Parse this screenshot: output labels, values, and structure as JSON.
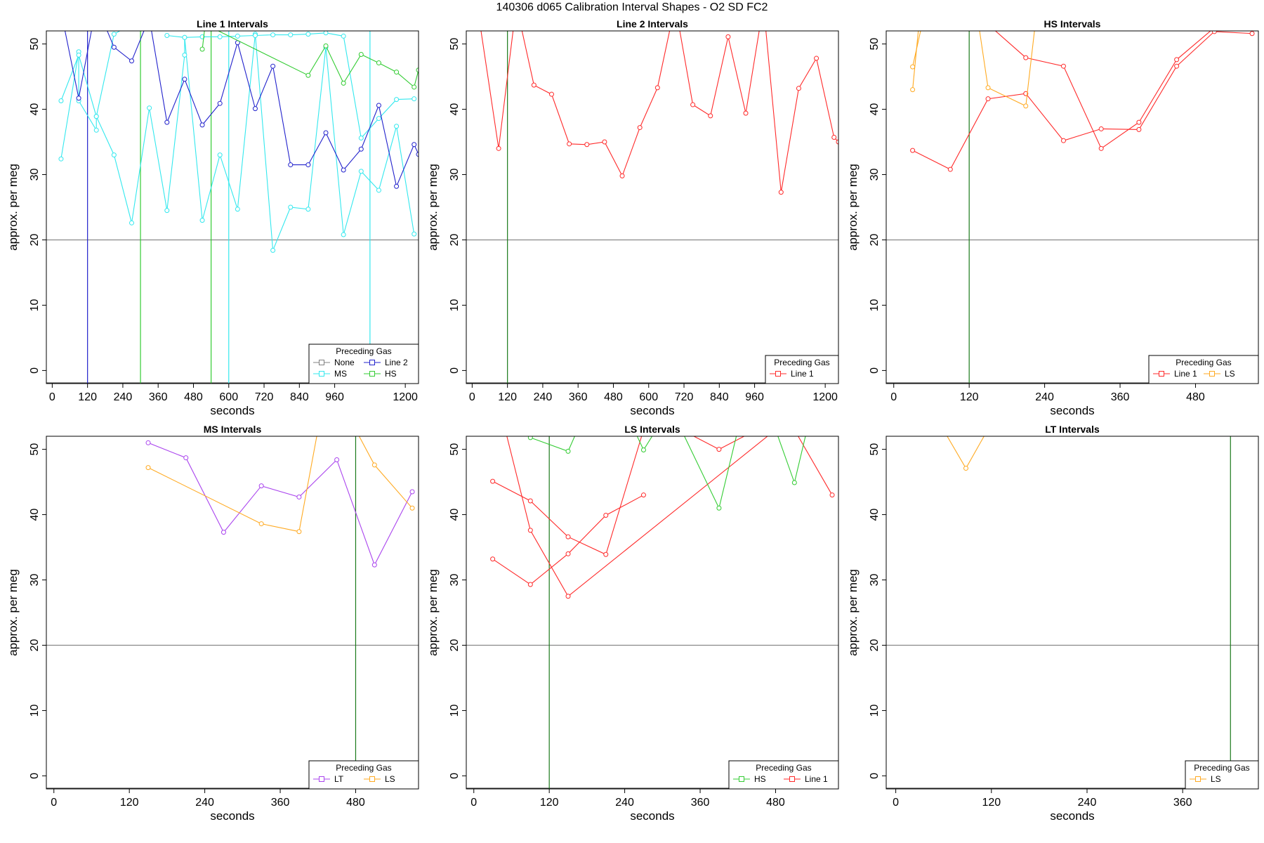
{
  "page_title": "140306   d065   Calibration Interval Shapes - O2 SD FC2",
  "axis_labels": {
    "x": "seconds",
    "y": "approx. per meg"
  },
  "legend_title": "Preceding Gas",
  "colors": {
    "None": "#808080",
    "Line 1": "#ff2a2a",
    "Line 2": "#2222cc",
    "MS": "#33e8ee",
    "HS": "#33cc33",
    "LS": "#ffaa22",
    "LT": "#aa44ee",
    "reference": "#888888",
    "vline_default": "#1a7a1a"
  },
  "chart_data": [
    {
      "type": "line",
      "title": "Line 1 Intervals",
      "xlabel": "seconds",
      "ylabel": "approx. per meg",
      "xlim": [
        -20,
        1245
      ],
      "ylim": [
        -2,
        52
      ],
      "xticks": [
        0,
        120,
        240,
        360,
        480,
        600,
        720,
        840,
        960,
        1200
      ],
      "yticks": [
        0,
        10,
        20,
        30,
        40,
        50
      ],
      "hline": 20,
      "vlines": [
        {
          "x": 120,
          "color": "#2222cc"
        },
        {
          "x": 300,
          "color": "#33cc33"
        },
        {
          "x": 540,
          "color": "#33cc33"
        },
        {
          "x": 600,
          "color": "#33e8ee"
        },
        {
          "x": 1080,
          "color": "#33e8ee"
        }
      ],
      "legend": {
        "title": "Preceding Gas",
        "entries": [
          "None",
          "Line 2",
          "MS",
          "HS"
        ],
        "columns": 2,
        "position": "bottom-right"
      },
      "series": [
        {
          "name": "MS",
          "x": [
            30,
            90,
            90,
            150,
            150,
            210,
            270,
            330,
            390,
            450,
            450,
            510,
            570,
            630,
            690,
            750,
            810,
            870,
            930,
            990,
            1050,
            1110,
            1170,
            1230
          ],
          "y": [
            32.4,
            48.8,
            41.3,
            36.8,
            38.9,
            33.0,
            22.6,
            40.2,
            24.5,
            48.3,
            51.0,
            23.0,
            33.0,
            24.7,
            51.5,
            18.4,
            25.0,
            24.7,
            49.5,
            20.8,
            30.5,
            27.6,
            37.4,
            20.9
          ]
        },
        {
          "name": "MS",
          "x": [
            30,
            90,
            150,
            210,
            270
          ],
          "y": [
            41.3,
            48.3,
            38.9,
            51.5,
            53
          ]
        },
        {
          "name": "MS",
          "x": [
            390,
            450,
            510,
            570,
            630,
            690,
            750,
            810,
            870,
            930,
            990,
            1050,
            1110,
            1170,
            1230
          ],
          "y": [
            51.3,
            51.0,
            51.1,
            51.1,
            51.2,
            51.3,
            51.4,
            51.4,
            51.5,
            51.7,
            51.2,
            35.6,
            38.6,
            41.5,
            41.6
          ]
        },
        {
          "name": "Line 2",
          "x": [
            30,
            90,
            150,
            210,
            270,
            330,
            390,
            450,
            510,
            570,
            630,
            690,
            750,
            810,
            870,
            930,
            990,
            1050,
            1110,
            1170,
            1230,
            1245
          ],
          "y": [
            55,
            41.7,
            56,
            49.5,
            47.4,
            54,
            38.0,
            44.6,
            37.6,
            40.9,
            50.2,
            40.1,
            46.6,
            31.5,
            31.5,
            36.4,
            30.7,
            33.9,
            40.6,
            28.2,
            34.6,
            33.1
          ]
        },
        {
          "name": "HS",
          "x": [
            510,
            520,
            870,
            930,
            990,
            1050,
            1110,
            1170,
            1230,
            1245
          ],
          "y": [
            49.2,
            53,
            45.2,
            49.7,
            44.0,
            48.4,
            47.1,
            45.7,
            43.4,
            46.0
          ]
        }
      ]
    },
    {
      "type": "line",
      "title": "Line 2 Intervals",
      "xlabel": "seconds",
      "ylabel": "approx. per meg",
      "xlim": [
        -20,
        1245
      ],
      "ylim": [
        -2,
        52
      ],
      "xticks": [
        0,
        120,
        240,
        360,
        480,
        600,
        720,
        840,
        960,
        1200
      ],
      "yticks": [
        0,
        10,
        20,
        30,
        40,
        50
      ],
      "hline": 20,
      "vlines": [
        {
          "x": 120,
          "color": "#1a7a1a"
        }
      ],
      "legend": {
        "title": "Preceding Gas",
        "entries": [
          "Line 1"
        ],
        "columns": 1,
        "position": "bottom-right"
      },
      "series": [
        {
          "name": "Line 1",
          "x": [
            20,
            90,
            150,
            210,
            270,
            330,
            390,
            450,
            510,
            570,
            630,
            690,
            750,
            810,
            870,
            930,
            990,
            1050,
            1110,
            1170,
            1230,
            1245
          ],
          "y": [
            55,
            34.0,
            56,
            43.7,
            42.3,
            34.7,
            34.6,
            35.0,
            29.8,
            37.2,
            43.3,
            56,
            40.7,
            39.0,
            51.1,
            39.4,
            56,
            27.3,
            43.2,
            47.8,
            35.7,
            35.0
          ]
        }
      ]
    },
    {
      "type": "line",
      "title": "HS Intervals",
      "xlabel": "seconds",
      "ylabel": "approx. per meg",
      "xlim": [
        -12,
        580
      ],
      "ylim": [
        -2,
        52
      ],
      "xticks": [
        0,
        120,
        240,
        360,
        480
      ],
      "yticks": [
        0,
        10,
        20,
        30,
        40,
        50
      ],
      "hline": 20,
      "vlines": [
        {
          "x": 120,
          "color": "#1a7a1a"
        }
      ],
      "legend": {
        "title": "Preceding Gas",
        "entries": [
          "Line 1",
          "LS"
        ],
        "columns": 2,
        "position": "bottom-right"
      },
      "series": [
        {
          "name": "Line 1",
          "x": [
            30,
            90,
            150,
            210,
            270,
            330,
            390,
            450,
            510,
            570
          ],
          "y": [
            33.7,
            30.8,
            41.6,
            42.4,
            35.2,
            37.0,
            36.9,
            46.6,
            51.9,
            51.6
          ]
        },
        {
          "name": "Line 1",
          "x": [
            150,
            210,
            270,
            330,
            390,
            450,
            510
          ],
          "y": [
            53,
            47.9,
            46.6,
            34.0,
            38.0,
            47.6,
            52.5
          ]
        },
        {
          "name": "LS",
          "x": [
            30,
            45
          ],
          "y": [
            46.5,
            53
          ]
        },
        {
          "name": "LS",
          "x": [
            30,
            40
          ],
          "y": [
            43.0,
            53
          ]
        },
        {
          "name": "LS",
          "x": [
            135,
            150,
            210,
            225
          ],
          "y": [
            53,
            43.3,
            40.5,
            53
          ]
        }
      ]
    },
    {
      "type": "line",
      "title": "MS Intervals",
      "xlabel": "seconds",
      "ylabel": "approx. per meg",
      "xlim": [
        -12,
        580
      ],
      "ylim": [
        -2,
        52
      ],
      "xticks": [
        0,
        120,
        240,
        360,
        480
      ],
      "yticks": [
        0,
        10,
        20,
        30,
        40,
        50
      ],
      "hline": 20,
      "vlines": [
        {
          "x": 480,
          "color": "#1a7a1a"
        }
      ],
      "legend": {
        "title": "Preceding Gas",
        "entries": [
          "LT",
          "LS"
        ],
        "columns": 2,
        "position": "bottom-right"
      },
      "series": [
        {
          "name": "LT",
          "x": [
            150,
            210,
            270,
            330,
            390,
            450,
            510,
            570
          ],
          "y": [
            51.0,
            48.7,
            37.3,
            44.4,
            42.7,
            48.4,
            32.3,
            43.5
          ]
        },
        {
          "name": "LS",
          "x": [
            150,
            330,
            390,
            420
          ],
          "y": [
            47.2,
            38.6,
            37.4,
            53
          ]
        },
        {
          "name": "LS",
          "x": [
            480,
            510,
            570
          ],
          "y": [
            53,
            47.6,
            41.0
          ]
        }
      ]
    },
    {
      "type": "line",
      "title": "LS Intervals",
      "xlabel": "seconds",
      "ylabel": "approx. per meg",
      "xlim": [
        -12,
        580
      ],
      "ylim": [
        -2,
        52
      ],
      "xticks": [
        0,
        120,
        240,
        360,
        480
      ],
      "yticks": [
        0,
        10,
        20,
        30,
        40,
        50
      ],
      "hline": 20,
      "vlines": [
        {
          "x": 120,
          "color": "#1a7a1a"
        }
      ],
      "legend": {
        "title": "Preceding Gas",
        "entries": [
          "HS",
          "Line 1"
        ],
        "columns": 2,
        "position": "bottom-right"
      },
      "series": [
        {
          "name": "Line 1",
          "x": [
            30,
            90,
            150,
            210,
            270,
            330,
            390,
            450,
            510,
            570
          ],
          "y": [
            45.1,
            42.1,
            36.6,
            33.9,
            53,
            53,
            50.0,
            53,
            53,
            43.0
          ]
        },
        {
          "name": "Line 1",
          "x": [
            30,
            90,
            150,
            210,
            270
          ],
          "y": [
            33.2,
            29.3,
            34.0,
            39.9,
            43.0
          ]
        },
        {
          "name": "Line 1",
          "x": [
            50,
            90,
            150,
            480
          ],
          "y": [
            53,
            37.6,
            27.5,
            53
          ]
        },
        {
          "name": "HS",
          "x": [
            90,
            150,
            165
          ],
          "y": [
            51.8,
            49.7,
            53
          ]
        },
        {
          "name": "HS",
          "x": [
            255,
            270,
            290
          ],
          "y": [
            53,
            49.9,
            53
          ]
        },
        {
          "name": "HS",
          "x": [
            330,
            390,
            420
          ],
          "y": [
            53,
            41.0,
            53
          ]
        },
        {
          "name": "HS",
          "x": [
            480,
            510,
            530
          ],
          "y": [
            53,
            44.9,
            53
          ]
        }
      ]
    },
    {
      "type": "line",
      "title": "LT Intervals",
      "xlabel": "seconds",
      "ylabel": "approx. per meg",
      "xlim": [
        -12,
        455
      ],
      "ylim": [
        -2,
        52
      ],
      "xticks": [
        0,
        120,
        240,
        360
      ],
      "yticks": [
        0,
        10,
        20,
        30,
        40,
        50
      ],
      "hline": 20,
      "vlines": [
        {
          "x": 420,
          "color": "#1a7a1a"
        }
      ],
      "legend": {
        "title": "Preceding Gas",
        "entries": [
          "LS"
        ],
        "columns": 1,
        "position": "bottom-right"
      },
      "series": [
        {
          "name": "LS",
          "x": [
            55,
            88,
            120
          ],
          "y": [
            54,
            47.1,
            54
          ]
        }
      ]
    }
  ]
}
